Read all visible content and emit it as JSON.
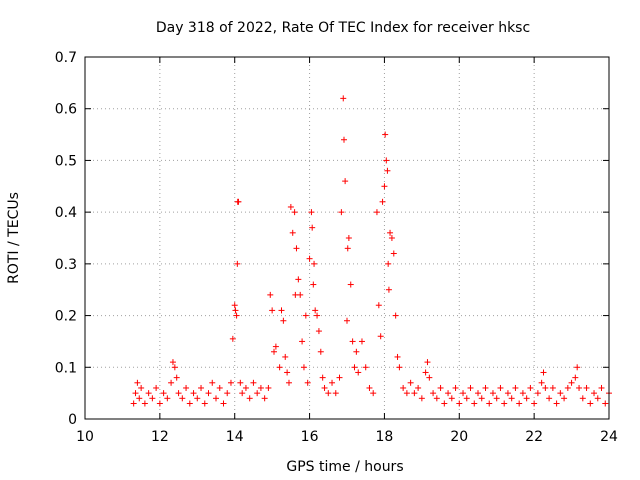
{
  "chart_data": {
    "type": "scatter",
    "title": "Day 318 of 2022, Rate Of TEC Index for receiver hksc",
    "xlabel": "GPS time / hours",
    "ylabel": "ROTI / TECUs",
    "xlim": [
      10,
      24
    ],
    "ylim": [
      0,
      0.7
    ],
    "xticks": [
      10,
      12,
      14,
      16,
      18,
      20,
      22,
      24
    ],
    "yticks": [
      0,
      0.1,
      0.2,
      0.3,
      0.4,
      0.5,
      0.6,
      0.7
    ],
    "grid": true,
    "legend": "none",
    "marker": "+",
    "color": "#ff0000",
    "series": [
      {
        "name": "",
        "points": [
          [
            11.3,
            0.03
          ],
          [
            11.35,
            0.05
          ],
          [
            11.4,
            0.07
          ],
          [
            11.45,
            0.04
          ],
          [
            11.5,
            0.06
          ],
          [
            11.6,
            0.03
          ],
          [
            11.7,
            0.05
          ],
          [
            11.8,
            0.04
          ],
          [
            11.9,
            0.06
          ],
          [
            12.0,
            0.03
          ],
          [
            12.1,
            0.05
          ],
          [
            12.2,
            0.04
          ],
          [
            12.3,
            0.07
          ],
          [
            12.35,
            0.11
          ],
          [
            12.4,
            0.1
          ],
          [
            12.45,
            0.08
          ],
          [
            12.5,
            0.05
          ],
          [
            12.6,
            0.04
          ],
          [
            12.7,
            0.06
          ],
          [
            12.8,
            0.03
          ],
          [
            12.9,
            0.05
          ],
          [
            13.0,
            0.04
          ],
          [
            13.1,
            0.06
          ],
          [
            13.2,
            0.03
          ],
          [
            13.3,
            0.05
          ],
          [
            13.4,
            0.07
          ],
          [
            13.5,
            0.04
          ],
          [
            13.6,
            0.06
          ],
          [
            13.7,
            0.03
          ],
          [
            13.8,
            0.05
          ],
          [
            13.9,
            0.07
          ],
          [
            13.95,
            0.155
          ],
          [
            14.0,
            0.22
          ],
          [
            14.02,
            0.21
          ],
          [
            14.05,
            0.2
          ],
          [
            14.07,
            0.3
          ],
          [
            14.08,
            0.42
          ],
          [
            14.1,
            0.42
          ],
          [
            14.15,
            0.07
          ],
          [
            14.2,
            0.05
          ],
          [
            14.3,
            0.06
          ],
          [
            14.4,
            0.04
          ],
          [
            14.5,
            0.07
          ],
          [
            14.6,
            0.05
          ],
          [
            14.7,
            0.06
          ],
          [
            14.8,
            0.04
          ],
          [
            14.9,
            0.06
          ],
          [
            14.95,
            0.24
          ],
          [
            15.0,
            0.21
          ],
          [
            15.05,
            0.13
          ],
          [
            15.1,
            0.14
          ],
          [
            15.2,
            0.1
          ],
          [
            15.25,
            0.21
          ],
          [
            15.3,
            0.19
          ],
          [
            15.35,
            0.12
          ],
          [
            15.4,
            0.09
          ],
          [
            15.45,
            0.07
          ],
          [
            15.5,
            0.41
          ],
          [
            15.55,
            0.36
          ],
          [
            15.6,
            0.4
          ],
          [
            15.62,
            0.24
          ],
          [
            15.65,
            0.33
          ],
          [
            15.7,
            0.27
          ],
          [
            15.75,
            0.24
          ],
          [
            15.8,
            0.15
          ],
          [
            15.85,
            0.1
          ],
          [
            15.9,
            0.2
          ],
          [
            15.95,
            0.07
          ],
          [
            16.0,
            0.31
          ],
          [
            16.05,
            0.4
          ],
          [
            16.07,
            0.37
          ],
          [
            16.1,
            0.26
          ],
          [
            16.12,
            0.3
          ],
          [
            16.15,
            0.21
          ],
          [
            16.2,
            0.2
          ],
          [
            16.25,
            0.17
          ],
          [
            16.3,
            0.13
          ],
          [
            16.35,
            0.08
          ],
          [
            16.4,
            0.06
          ],
          [
            16.5,
            0.05
          ],
          [
            16.6,
            0.07
          ],
          [
            16.7,
            0.05
          ],
          [
            16.8,
            0.08
          ],
          [
            16.85,
            0.4
          ],
          [
            16.9,
            0.62
          ],
          [
            16.92,
            0.54
          ],
          [
            16.95,
            0.46
          ],
          [
            17.0,
            0.19
          ],
          [
            17.02,
            0.33
          ],
          [
            17.05,
            0.35
          ],
          [
            17.1,
            0.26
          ],
          [
            17.15,
            0.15
          ],
          [
            17.2,
            0.1
          ],
          [
            17.25,
            0.13
          ],
          [
            17.3,
            0.09
          ],
          [
            17.4,
            0.15
          ],
          [
            17.5,
            0.1
          ],
          [
            17.6,
            0.06
          ],
          [
            17.7,
            0.05
          ],
          [
            17.8,
            0.4
          ],
          [
            17.85,
            0.22
          ],
          [
            17.9,
            0.16
          ],
          [
            17.95,
            0.42
          ],
          [
            18.0,
            0.45
          ],
          [
            18.02,
            0.55
          ],
          [
            18.05,
            0.5
          ],
          [
            18.08,
            0.48
          ],
          [
            18.1,
            0.3
          ],
          [
            18.12,
            0.25
          ],
          [
            18.15,
            0.36
          ],
          [
            18.2,
            0.35
          ],
          [
            18.25,
            0.32
          ],
          [
            18.3,
            0.2
          ],
          [
            18.35,
            0.12
          ],
          [
            18.4,
            0.1
          ],
          [
            18.5,
            0.06
          ],
          [
            18.6,
            0.05
          ],
          [
            18.7,
            0.07
          ],
          [
            18.8,
            0.05
          ],
          [
            18.9,
            0.06
          ],
          [
            19.0,
            0.04
          ],
          [
            19.1,
            0.09
          ],
          [
            19.15,
            0.11
          ],
          [
            19.2,
            0.08
          ],
          [
            19.3,
            0.05
          ],
          [
            19.4,
            0.04
          ],
          [
            19.5,
            0.06
          ],
          [
            19.6,
            0.03
          ],
          [
            19.7,
            0.05
          ],
          [
            19.8,
            0.04
          ],
          [
            19.9,
            0.06
          ],
          [
            20.0,
            0.03
          ],
          [
            20.1,
            0.05
          ],
          [
            20.2,
            0.04
          ],
          [
            20.3,
            0.06
          ],
          [
            20.4,
            0.03
          ],
          [
            20.5,
            0.05
          ],
          [
            20.6,
            0.04
          ],
          [
            20.7,
            0.06
          ],
          [
            20.8,
            0.03
          ],
          [
            20.9,
            0.05
          ],
          [
            21.0,
            0.04
          ],
          [
            21.1,
            0.06
          ],
          [
            21.2,
            0.03
          ],
          [
            21.3,
            0.05
          ],
          [
            21.4,
            0.04
          ],
          [
            21.5,
            0.06
          ],
          [
            21.6,
            0.03
          ],
          [
            21.7,
            0.05
          ],
          [
            21.8,
            0.04
          ],
          [
            21.9,
            0.06
          ],
          [
            22.0,
            0.03
          ],
          [
            22.1,
            0.05
          ],
          [
            22.2,
            0.07
          ],
          [
            22.25,
            0.09
          ],
          [
            22.3,
            0.06
          ],
          [
            22.4,
            0.04
          ],
          [
            22.5,
            0.06
          ],
          [
            22.6,
            0.03
          ],
          [
            22.7,
            0.05
          ],
          [
            22.8,
            0.04
          ],
          [
            22.9,
            0.06
          ],
          [
            23.0,
            0.07
          ],
          [
            23.1,
            0.08
          ],
          [
            23.15,
            0.1
          ],
          [
            23.2,
            0.06
          ],
          [
            23.3,
            0.04
          ],
          [
            23.4,
            0.06
          ],
          [
            23.5,
            0.03
          ],
          [
            23.6,
            0.05
          ],
          [
            23.7,
            0.04
          ],
          [
            23.8,
            0.06
          ],
          [
            23.9,
            0.03
          ],
          [
            24.0,
            0.05
          ]
        ]
      }
    ]
  }
}
